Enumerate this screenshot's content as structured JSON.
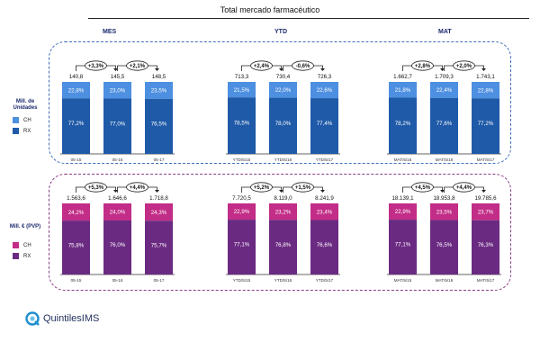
{
  "title": "Total mercado farmacéutico",
  "groups": [
    "MES",
    "YTD",
    "MAT"
  ],
  "logo_text": "QuintilesIMS",
  "colors": {
    "units_ch": "#4d8fe0",
    "units_rx": "#1f5aa8",
    "euro_ch": "#c22d87",
    "euro_rx": "#6b2a82"
  },
  "chart_data": [
    {
      "type": "bar",
      "stacked": true,
      "ylabel": "Mill. de Unidades",
      "legend": [
        "CH",
        "RX"
      ],
      "legend_placement": "left",
      "panels": [
        {
          "group": "MES",
          "categories": [
            "05-15",
            "05-16",
            "05-17"
          ],
          "totals": [
            "140,8",
            "145,5",
            "148,5"
          ],
          "series": [
            {
              "name": "RX",
              "values": [
                "77,2%",
                "77,0%",
                "76,5%"
              ],
              "numeric": [
                77.2,
                77.0,
                76.5
              ]
            },
            {
              "name": "CH",
              "values": [
                "22,8%",
                "23,0%",
                "23,5%"
              ],
              "numeric": [
                22.8,
                23.0,
                23.5
              ]
            }
          ],
          "growth": [
            "+3,3%",
            "+2,1%"
          ]
        },
        {
          "group": "YTD",
          "categories": [
            "YTD/5/15",
            "YTD/5/16",
            "YTD/5/17"
          ],
          "totals": [
            "713,3",
            "730,4",
            "726,3"
          ],
          "series": [
            {
              "name": "RX",
              "values": [
                "78,5%",
                "78,0%",
                "77,4%"
              ],
              "numeric": [
                78.5,
                78.0,
                77.4
              ]
            },
            {
              "name": "CH",
              "values": [
                "21,5%",
                "22,0%",
                "22,6%"
              ],
              "numeric": [
                21.5,
                22.0,
                22.6
              ]
            }
          ],
          "growth": [
            "+2,4%",
            "-0,6%"
          ]
        },
        {
          "group": "MAT",
          "categories": [
            "MAT/5/15",
            "MAT/5/16",
            "MAT/5/17"
          ],
          "totals": [
            "1.662,7",
            "1.709,3",
            "1.743,1"
          ],
          "series": [
            {
              "name": "RX",
              "values": [
                "78,2%",
                "77,6%",
                "77,2%"
              ],
              "numeric": [
                78.2,
                77.6,
                77.2
              ]
            },
            {
              "name": "CH",
              "values": [
                "21,8%",
                "22,4%",
                "22,8%"
              ],
              "numeric": [
                21.8,
                22.4,
                22.8
              ]
            }
          ],
          "growth": [
            "+2,8%",
            "+2,0%"
          ]
        }
      ]
    },
    {
      "type": "bar",
      "stacked": true,
      "ylabel": "Mill. € (PVP)",
      "legend": [
        "CH",
        "RX"
      ],
      "legend_placement": "left",
      "panels": [
        {
          "group": "MES",
          "categories": [
            "05-15",
            "05-16",
            "05-17"
          ],
          "totals": [
            "1.563,6",
            "1.646,6",
            "1.718,8"
          ],
          "series": [
            {
              "name": "RX",
              "values": [
                "75,8%",
                "76,0%",
                "75,7%"
              ],
              "numeric": [
                75.8,
                76.0,
                75.7
              ]
            },
            {
              "name": "CH",
              "values": [
                "24,2%",
                "24,0%",
                "24,3%"
              ],
              "numeric": [
                24.2,
                24.0,
                24.3
              ]
            }
          ],
          "growth": [
            "+5,3%",
            "+4,4%"
          ]
        },
        {
          "group": "YTD",
          "categories": [
            "YTD/5/15",
            "YTD/5/16",
            "YTD/5/17"
          ],
          "totals": [
            "7.720,5",
            "8.119,0",
            "8.241,9"
          ],
          "series": [
            {
              "name": "RX",
              "values": [
                "77,1%",
                "76,8%",
                "76,6%"
              ],
              "numeric": [
                77.1,
                76.8,
                76.6
              ]
            },
            {
              "name": "CH",
              "values": [
                "22,9%",
                "23,2%",
                "23,4%"
              ],
              "numeric": [
                22.9,
                23.2,
                23.4
              ]
            }
          ],
          "growth": [
            "+5,2%",
            "+1,5%"
          ]
        },
        {
          "group": "MAT",
          "categories": [
            "MAT/5/15",
            "MAT/5/16",
            "MAT/5/17"
          ],
          "totals": [
            "18.139,1",
            "18.953,8",
            "19.785,6"
          ],
          "series": [
            {
              "name": "RX",
              "values": [
                "77,1%",
                "76,5%",
                "76,3%"
              ],
              "numeric": [
                77.1,
                76.5,
                76.3
              ]
            },
            {
              "name": "CH",
              "values": [
                "22,9%",
                "23,5%",
                "23,7%"
              ],
              "numeric": [
                22.9,
                23.5,
                23.7
              ]
            }
          ],
          "growth": [
            "+4,5%",
            "+4,4%"
          ]
        }
      ]
    }
  ]
}
